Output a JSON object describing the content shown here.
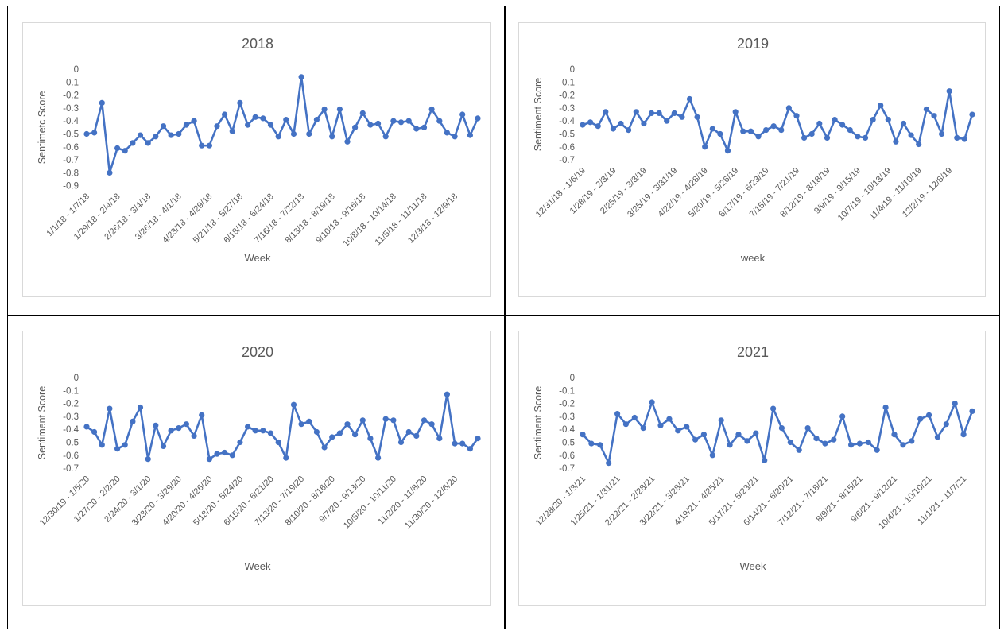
{
  "chart_data": [
    {
      "type": "line",
      "title": "2018",
      "ylabel": "Sentimetc Score",
      "xlabel": "Week",
      "ylim": [
        -0.9,
        0
      ],
      "yticks": [
        "0",
        "-0.1",
        "-0.2",
        "-0.3",
        "-0.4",
        "-0.5",
        "-0.6",
        "-0.7",
        "-0.8",
        "-0.9"
      ],
      "xtick_labels": [
        "1/1/18 - 1/7/18",
        "1/29/18 - 2/4/18",
        "2/26/18 - 3/4/18",
        "3/26/18 - 4/1/18",
        "4/23/18 - 4/29/18",
        "5/21/18 - 5/27/18",
        "6/18/18 - 6/24/18",
        "7/16/18 - 7/22/18",
        "8/13/18 - 8/19/18",
        "9/10/18 - 9/16/18",
        "10/8/18 - 10/14/18",
        "11/5/18 - 11/11/18",
        "12/3/18 - 12/9/18"
      ],
      "color": "#4472c4",
      "grid": false,
      "values": [
        -0.5,
        -0.49,
        -0.26,
        -0.8,
        -0.61,
        -0.63,
        -0.57,
        -0.51,
        -0.57,
        -0.52,
        -0.44,
        -0.51,
        -0.5,
        -0.43,
        -0.4,
        -0.59,
        -0.59,
        -0.44,
        -0.35,
        -0.48,
        -0.26,
        -0.43,
        -0.37,
        -0.38,
        -0.43,
        -0.52,
        -0.39,
        -0.5,
        -0.06,
        -0.5,
        -0.39,
        -0.31,
        -0.52,
        -0.31,
        -0.56,
        -0.45,
        -0.34,
        -0.43,
        -0.42,
        -0.52,
        -0.4,
        -0.41,
        -0.4,
        -0.46,
        -0.45,
        -0.31,
        -0.4,
        -0.49,
        -0.52,
        -0.35,
        -0.51,
        -0.38
      ]
    },
    {
      "type": "line",
      "title": "2019",
      "ylabel": "Sentiment Score",
      "xlabel": "week",
      "ylim": [
        -0.7,
        0
      ],
      "yticks": [
        "0",
        "-0.1",
        "-0.2",
        "-0.3",
        "-0.4",
        "-0.5",
        "-0.6",
        "-0.7"
      ],
      "xtick_labels": [
        "12/31/18 - 1/6/19",
        "1/28/19 - 2/3/19",
        "2/25/19 - 3/3/19",
        "3/25/19 - 3/31/19",
        "4/22/19 - 4/28/19",
        "5/20/19 - 5/26/19",
        "6/17/19 - 6/23/19",
        "7/15/19 - 7/21/19",
        "8/12/19 - 8/18/19",
        "9/9/19 - 9/15/19",
        "10/7/19 - 10/13/19",
        "11/4/19 - 11/10/19",
        "12/2/19 - 12/8/19"
      ],
      "color": "#4472c4",
      "grid": false,
      "values": [
        -0.43,
        -0.41,
        -0.44,
        -0.33,
        -0.46,
        -0.42,
        -0.47,
        -0.33,
        -0.42,
        -0.34,
        -0.34,
        -0.4,
        -0.34,
        -0.37,
        -0.23,
        -0.37,
        -0.6,
        -0.46,
        -0.5,
        -0.63,
        -0.33,
        -0.48,
        -0.48,
        -0.52,
        -0.47,
        -0.44,
        -0.47,
        -0.3,
        -0.36,
        -0.53,
        -0.5,
        -0.42,
        -0.53,
        -0.39,
        -0.43,
        -0.47,
        -0.52,
        -0.53,
        -0.39,
        -0.28,
        -0.39,
        -0.56,
        -0.42,
        -0.51,
        -0.58,
        -0.31,
        -0.36,
        -0.5,
        -0.17,
        -0.53,
        -0.54,
        -0.35
      ]
    },
    {
      "type": "line",
      "title": "2020",
      "ylabel": "Sentiment Score",
      "xlabel": "Week",
      "ylim": [
        -0.7,
        0
      ],
      "yticks": [
        "0",
        "-0.1",
        "-0.2",
        "-0.3",
        "-0.4",
        "-0.5",
        "-0.6",
        "-0.7"
      ],
      "xtick_labels": [
        "12/30/19 - 1/5/20",
        "1/27/20 - 2/2/20",
        "2/24/20 - 3/1/20",
        "3/23/20 - 3/29/20",
        "4/20/20 - 4/26/20",
        "5/18/20 - 5/24/20",
        "6/15/20 - 6/21/20",
        "7/13/20 - 7/19/20",
        "8/10/20 - 8/16/20",
        "9/7/20 - 9/13/20",
        "10/5/20 - 10/11/20",
        "11/2/20 - 11/8/20",
        "11/30/20 - 12/6/20"
      ],
      "color": "#4472c4",
      "grid": false,
      "values": [
        -0.38,
        -0.42,
        -0.52,
        -0.24,
        -0.55,
        -0.52,
        -0.34,
        -0.23,
        -0.63,
        -0.37,
        -0.53,
        -0.41,
        -0.39,
        -0.36,
        -0.45,
        -0.29,
        -0.63,
        -0.59,
        -0.58,
        -0.6,
        -0.5,
        -0.38,
        -0.41,
        -0.41,
        -0.43,
        -0.5,
        -0.62,
        -0.21,
        -0.36,
        -0.34,
        -0.42,
        -0.54,
        -0.46,
        -0.43,
        -0.36,
        -0.44,
        -0.33,
        -0.47,
        -0.62,
        -0.32,
        -0.33,
        -0.5,
        -0.42,
        -0.45,
        -0.33,
        -0.36,
        -0.47,
        -0.13,
        -0.51,
        -0.51,
        -0.55,
        -0.47
      ]
    },
    {
      "type": "line",
      "title": "2021",
      "ylabel": "Sentiment Score",
      "xlabel": "Week",
      "ylim": [
        -0.7,
        0
      ],
      "yticks": [
        "0",
        "-0.1",
        "-0.2",
        "-0.3",
        "-0.4",
        "-0.5",
        "-0.6",
        "-0.7"
      ],
      "xtick_labels": [
        "12/28/20 - 1/3/21",
        "1/25/21 - 1/31/21",
        "2/22/21 - 2/28/21",
        "3/22/21 - 3/28/21",
        "4/19/21 - 4/25/21",
        "5/17/21 - 5/23/21",
        "6/14/21 - 6/20/21",
        "7/12/21 - 7/18/21",
        "8/9/21 - 8/15/21",
        "9/6/21 - 9/12/21",
        "10/4/21 - 10/10/21",
        "11/1/21 - 11/7/21"
      ],
      "color": "#4472c4",
      "grid": false,
      "values": [
        -0.44,
        -0.51,
        -0.52,
        -0.66,
        -0.28,
        -0.36,
        -0.31,
        -0.39,
        -0.19,
        -0.37,
        -0.32,
        -0.41,
        -0.38,
        -0.48,
        -0.44,
        -0.6,
        -0.33,
        -0.52,
        -0.44,
        -0.49,
        -0.43,
        -0.64,
        -0.24,
        -0.39,
        -0.5,
        -0.56,
        -0.39,
        -0.47,
        -0.51,
        -0.48,
        -0.3,
        -0.52,
        -0.51,
        -0.5,
        -0.56,
        -0.23,
        -0.44,
        -0.52,
        -0.49,
        -0.32,
        -0.29,
        -0.46,
        -0.36,
        -0.2,
        -0.44,
        -0.26
      ]
    }
  ]
}
